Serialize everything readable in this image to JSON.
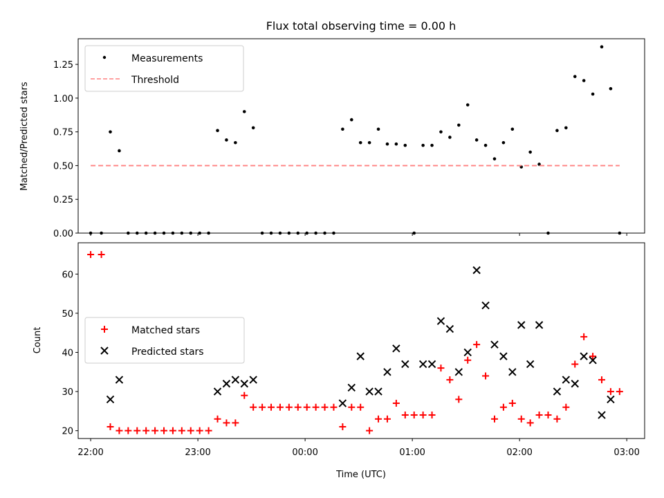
{
  "chart_data": [
    {
      "type": "scatter",
      "title": "Flux total observing time = 0.00 h",
      "xlabel": "",
      "ylabel": "Matched/Predicted stars",
      "xlim": [
        "21:53",
        "03:10"
      ],
      "ylim": [
        0,
        1.44
      ],
      "x_tick_labels": [
        "22:00",
        "23:00",
        "00:00",
        "01:00",
        "02:00",
        "03:00"
      ],
      "y_tick_labels": [
        "0.00",
        "0.25",
        "0.50",
        "0.75",
        "1.00",
        "1.25"
      ],
      "y_ticks": [
        0,
        0.25,
        0.5,
        0.75,
        1.0,
        1.25
      ],
      "legend_position": "top-left",
      "series": [
        {
          "name": "Measurements",
          "color": "#000000",
          "marker": "point",
          "x": [
            "22:00",
            "22:06",
            "22:11",
            "22:16",
            "22:21",
            "22:26",
            "22:31",
            "22:36",
            "22:41",
            "22:46",
            "22:51",
            "22:56",
            "23:01",
            "23:06",
            "23:11",
            "23:16",
            "23:21",
            "23:26",
            "23:31",
            "23:36",
            "23:41",
            "23:46",
            "23:51",
            "23:56",
            "00:01",
            "00:06",
            "00:11",
            "00:16",
            "00:21",
            "00:26",
            "00:31",
            "00:36",
            "00:41",
            "00:46",
            "00:51",
            "00:56",
            "01:01",
            "01:06",
            "01:11",
            "01:16",
            "01:21",
            "01:26",
            "01:31",
            "01:36",
            "01:41",
            "01:46",
            "01:51",
            "01:56",
            "02:01",
            "02:06",
            "02:11",
            "02:16",
            "02:21",
            "02:26",
            "02:31",
            "02:36",
            "02:41",
            "02:46",
            "02:51",
            "02:56"
          ],
          "y": [
            0,
            0,
            0.75,
            0.61,
            0,
            0,
            0,
            0,
            0,
            0,
            0,
            0,
            0,
            0,
            0.76,
            0.69,
            0.67,
            0.9,
            0.78,
            0,
            0,
            0,
            0,
            0,
            0,
            0,
            0,
            0,
            0.77,
            0.84,
            0.67,
            0.67,
            0.77,
            0.66,
            0.66,
            0.65,
            0,
            0.65,
            0.65,
            0.75,
            0.71,
            0.8,
            0.95,
            0.69,
            0.65,
            0.55,
            0.67,
            0.77,
            0.49,
            0.6,
            0.51,
            0,
            0.76,
            0.78,
            1.16,
            1.13,
            1.03,
            1.38,
            1.07,
            0
          ]
        },
        {
          "name": "Threshold",
          "color": "#ff8080",
          "style": "dashed",
          "x": [
            "22:00",
            "02:56"
          ],
          "y": [
            0.5,
            0.5
          ]
        }
      ]
    },
    {
      "type": "scatter",
      "title": "",
      "xlabel": "Time (UTC)",
      "ylabel": "Count",
      "xlim": [
        "21:53",
        "03:10"
      ],
      "ylim": [
        18,
        68
      ],
      "x_tick_labels": [
        "22:00",
        "23:00",
        "00:00",
        "01:00",
        "02:00",
        "03:00"
      ],
      "y_tick_labels": [
        "20",
        "30",
        "40",
        "50",
        "60"
      ],
      "y_ticks": [
        20,
        30,
        40,
        50,
        60
      ],
      "legend_position": "center-left",
      "series": [
        {
          "name": "Matched stars",
          "color": "#ff0000",
          "marker": "plus",
          "x": [
            "22:00",
            "22:06",
            "22:11",
            "22:16",
            "22:21",
            "22:26",
            "22:31",
            "22:36",
            "22:41",
            "22:46",
            "22:51",
            "22:56",
            "23:01",
            "23:06",
            "23:11",
            "23:16",
            "23:21",
            "23:26",
            "23:31",
            "23:36",
            "23:41",
            "23:46",
            "23:51",
            "23:56",
            "00:01",
            "00:06",
            "00:11",
            "00:16",
            "00:21",
            "00:26",
            "00:31",
            "00:36",
            "00:41",
            "00:46",
            "00:51",
            "00:56",
            "01:01",
            "01:06",
            "01:11",
            "01:16",
            "01:21",
            "01:26",
            "01:31",
            "01:36",
            "01:41",
            "01:46",
            "01:51",
            "01:56",
            "02:01",
            "02:06",
            "02:11",
            "02:16",
            "02:21",
            "02:26",
            "02:31",
            "02:36",
            "02:41",
            "02:46",
            "02:51",
            "02:56"
          ],
          "y": [
            65,
            65,
            21,
            20,
            20,
            20,
            20,
            20,
            20,
            20,
            20,
            20,
            20,
            20,
            23,
            22,
            22,
            29,
            26,
            26,
            26,
            26,
            26,
            26,
            26,
            26,
            26,
            26,
            21,
            26,
            26,
            20,
            23,
            23,
            27,
            24,
            24,
            24,
            24,
            36,
            33,
            28,
            38,
            42,
            34,
            23,
            26,
            27,
            23,
            22,
            24,
            24,
            23,
            26,
            37,
            44,
            39,
            33,
            30,
            30
          ]
        },
        {
          "name": "Predicted stars",
          "color": "#000000",
          "marker": "x",
          "x": [
            "22:11",
            "22:16",
            "23:11",
            "23:16",
            "23:21",
            "23:26",
            "23:31",
            "00:21",
            "00:26",
            "00:31",
            "00:36",
            "00:41",
            "00:46",
            "00:51",
            "00:56",
            "01:06",
            "01:11",
            "01:16",
            "01:21",
            "01:26",
            "01:31",
            "01:36",
            "01:41",
            "01:46",
            "01:51",
            "01:56",
            "02:01",
            "02:06",
            "02:11",
            "02:21",
            "02:26",
            "02:31",
            "02:36",
            "02:41",
            "02:46",
            "02:51"
          ],
          "y": [
            28,
            33,
            30,
            32,
            33,
            32,
            33,
            27,
            31,
            39,
            30,
            30,
            35,
            41,
            37,
            37,
            37,
            48,
            46,
            35,
            40,
            61,
            52,
            42,
            39,
            35,
            47,
            37,
            47,
            30,
            33,
            32,
            39,
            38,
            24,
            28
          ]
        }
      ]
    }
  ]
}
